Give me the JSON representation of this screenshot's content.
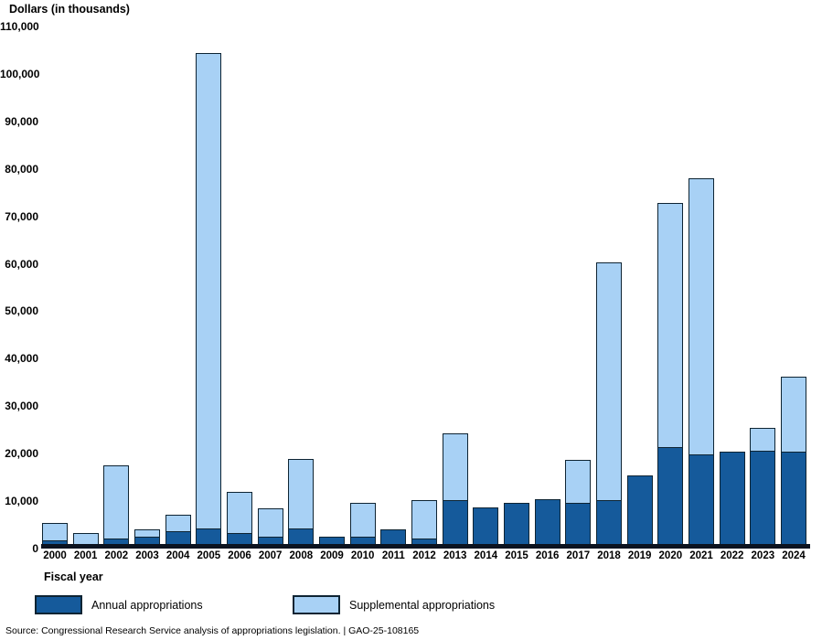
{
  "header": {
    "y_axis_title": "Dollars (in thousands)"
  },
  "x_axis": {
    "title": "Fiscal year"
  },
  "legend": {
    "annual_label": "Annual appropriations",
    "supplemental_label": "Supplemental appropriations"
  },
  "source_line": "Source: Congressional Research Service analysis of appropriations legislation.  |  GAO-25-108165",
  "colors": {
    "annual": "#155a9b",
    "supplemental": "#a8d1f5",
    "outline": "#0e2433",
    "axis_line": "#0b1320",
    "text": "#000000",
    "background": "#ffffff"
  },
  "chart_data": {
    "type": "bar",
    "stacked": true,
    "title": "",
    "xlabel": "Fiscal year",
    "ylabel": "Dollars (in thousands)",
    "ylim": [
      0,
      110000
    ],
    "ytick_step": 10000,
    "ytick_labels": [
      "0",
      "10,000",
      "20,000",
      "30,000",
      "40,000",
      "50,000",
      "60,000",
      "70,000",
      "80,000",
      "90,000",
      "100,000",
      "110,000"
    ],
    "grid": false,
    "legend_position": "bottom",
    "categories": [
      "2000",
      "2001",
      "2002",
      "2003",
      "2004",
      "2005",
      "2006",
      "2007",
      "2008",
      "2009",
      "2010",
      "2011",
      "2012",
      "2013",
      "2014",
      "2015",
      "2016",
      "2017",
      "2018",
      "2019",
      "2020",
      "2021",
      "2022",
      "2023",
      "2024"
    ],
    "series": [
      {
        "name": "Annual appropriations",
        "color": "#155a9b",
        "values": [
          1500,
          300,
          1900,
          2400,
          3400,
          4000,
          3000,
          2300,
          4000,
          2600,
          2300,
          4000,
          1900,
          10000,
          8700,
          9600,
          10400,
          9400,
          10000,
          15500,
          21100,
          19700,
          20500,
          20500,
          20300
        ]
      },
      {
        "name": "Supplemental appropriations",
        "color": "#a8d1f5",
        "values": [
          3900,
          2900,
          15700,
          1800,
          3700,
          100400,
          8900,
          6200,
          14900,
          0,
          7300,
          0,
          8300,
          14200,
          0,
          0,
          0,
          9200,
          50300,
          0,
          51700,
          58300,
          0,
          5100,
          16000
        ]
      }
    ]
  }
}
